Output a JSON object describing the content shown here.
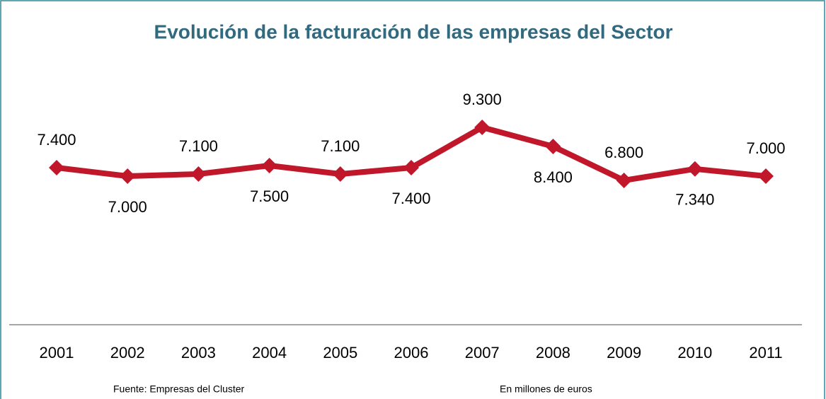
{
  "chart_data": {
    "type": "line",
    "title": "Evolución de la facturación de las empresas del Sector",
    "categories": [
      "2001",
      "2002",
      "2003",
      "2004",
      "2005",
      "2006",
      "2007",
      "2008",
      "2009",
      "2010",
      "2011"
    ],
    "series": [
      {
        "name": "Facturación",
        "color": "#c0182a",
        "values": [
          7400,
          7000,
          7100,
          7500,
          7100,
          7400,
          9300,
          8400,
          6800,
          7340,
          7000
        ],
        "value_labels": [
          "7.400",
          "7.000",
          "7.100",
          "7.500",
          "7.100",
          "7.400",
          "9.300",
          "8.400",
          "6.800",
          "7.340",
          "7.000"
        ]
      }
    ],
    "ylim": [
      0,
      10000
    ],
    "notes": {
      "source": "Fuente: Empresas del Cluster",
      "unit": "En millones de euros"
    }
  }
}
